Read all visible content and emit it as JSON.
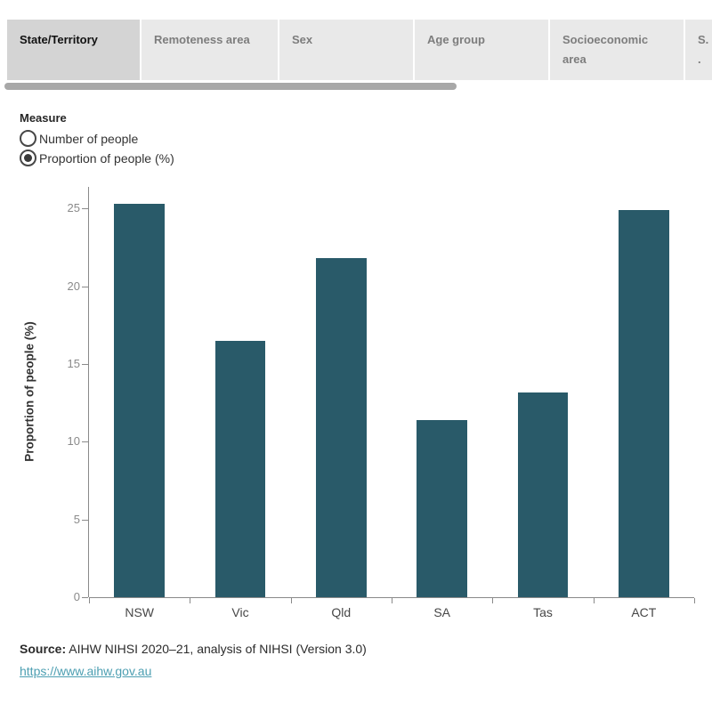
{
  "tabs": {
    "items": [
      {
        "label": "State/Territory",
        "active": true
      },
      {
        "label": "Remoteness area",
        "active": false
      },
      {
        "label": "Sex",
        "active": false
      },
      {
        "label": "Age group",
        "active": false
      },
      {
        "label": "Socioeconomic area",
        "active": false
      },
      {
        "label": "S. .",
        "active": false
      }
    ]
  },
  "measure": {
    "title": "Measure",
    "options": [
      {
        "label": "Number of people",
        "selected": false
      },
      {
        "label": "Proportion of people (%)",
        "selected": true
      }
    ]
  },
  "chart_data": {
    "type": "bar",
    "categories": [
      "NSW",
      "Vic",
      "Qld",
      "SA",
      "Tas",
      "ACT"
    ],
    "values": [
      25.3,
      16.5,
      21.8,
      11.4,
      13.2,
      24.9
    ],
    "title": "",
    "xlabel": "",
    "ylabel": "Proportion of people (%)",
    "ylim": [
      0,
      26.4
    ],
    "yticks": [
      0,
      5,
      10,
      15,
      20,
      25
    ],
    "grid": false,
    "legend": "none",
    "bar_color": "#295a69"
  },
  "footer": {
    "source_label": "Source:",
    "source_text": " AIHW NIHSI 2020–21, analysis of NIHSI (Version 3.0)",
    "link_text": "https://www.aihw.gov.au"
  },
  "colors": {
    "bar": "#295a69",
    "link": "#4d9fb2",
    "tab_active_bg": "#d4d4d4",
    "tab_inactive_bg": "#e9e9e9",
    "axis": "#8a8a8a"
  }
}
